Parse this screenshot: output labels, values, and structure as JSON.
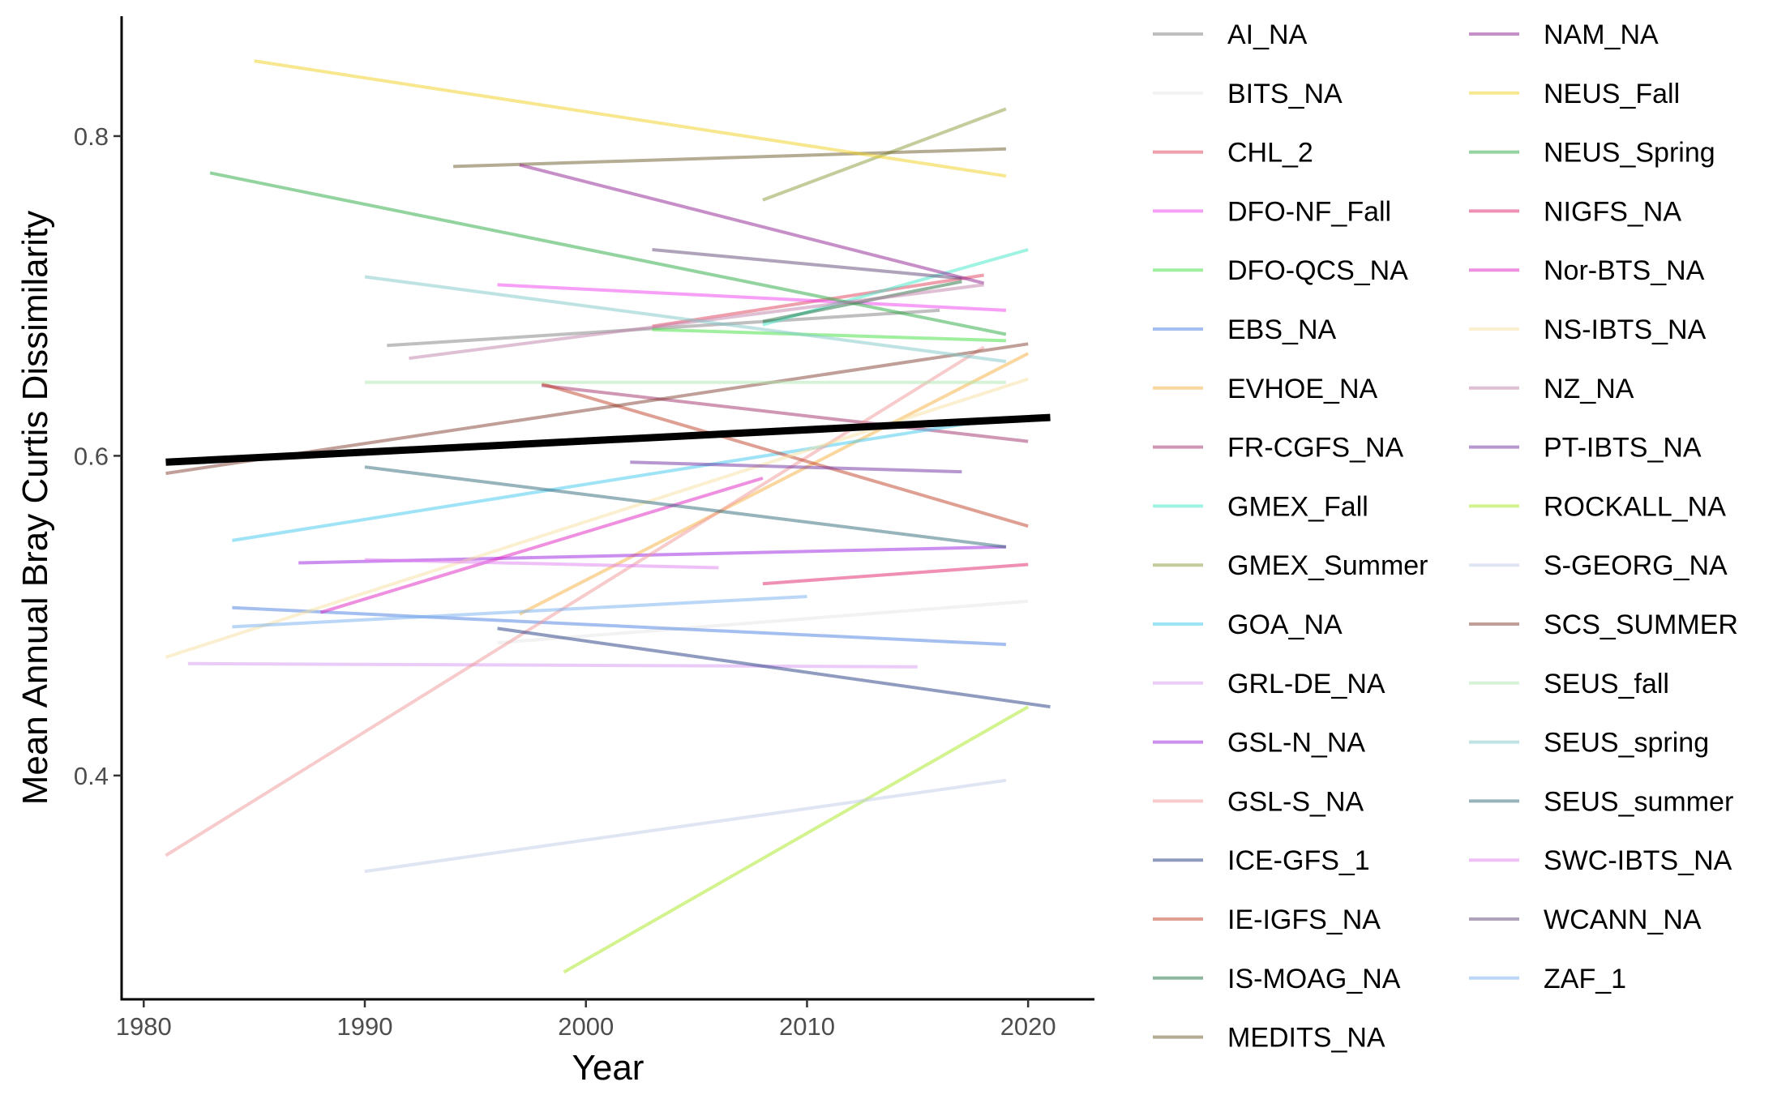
{
  "chart_data": {
    "type": "line",
    "title": "",
    "xlabel": "Year",
    "ylabel": "Mean Annual Bray Curtis Dissimilarity",
    "xlim": [
      1979,
      2023
    ],
    "ylim": [
      0.26,
      0.875
    ],
    "x_ticks": [
      1980,
      1990,
      2000,
      2010,
      2020
    ],
    "x_tick_labels": [
      "1980",
      "1990",
      "2000",
      "2010",
      "2020"
    ],
    "y_ticks": [
      0.4,
      0.6,
      0.8
    ],
    "y_tick_labels": [
      "0.4",
      "0.6",
      "0.8"
    ],
    "grid": false,
    "legend_position": "right",
    "series": [
      {
        "name": "AI_NA",
        "color": "#808080",
        "x": [
          1991,
          2016
        ],
        "y": [
          0.669,
          0.691
        ]
      },
      {
        "name": "BITS_NA",
        "color": "#e6e6e6",
        "x": [
          1996,
          2020
        ],
        "y": [
          0.483,
          0.509
        ]
      },
      {
        "name": "CHL_2",
        "color": "#e0405a",
        "x": [
          2003,
          2018
        ],
        "y": [
          0.681,
          0.713
        ]
      },
      {
        "name": "DFO-NF_Fall",
        "color": "#f040f0",
        "x": [
          1996,
          2019
        ],
        "y": [
          0.707,
          0.691
        ]
      },
      {
        "name": "DFO-QCS_NA",
        "color": "#40e040",
        "x": [
          2003,
          2019
        ],
        "y": [
          0.679,
          0.672
        ]
      },
      {
        "name": "EBS_NA",
        "color": "#4a7fe0",
        "x": [
          1984,
          2019
        ],
        "y": [
          0.505,
          0.482
        ]
      },
      {
        "name": "EVHOE_NA",
        "color": "#f5b040",
        "x": [
          1997,
          2020
        ],
        "y": [
          0.501,
          0.664
        ]
      },
      {
        "name": "FR-CGFS_NA",
        "color": "#a03068",
        "x": [
          1998,
          2020
        ],
        "y": [
          0.644,
          0.609
        ]
      },
      {
        "name": "GMEX_Fall",
        "color": "#40e8c8",
        "x": [
          2008,
          2020
        ],
        "y": [
          0.682,
          0.729
        ]
      },
      {
        "name": "GMEX_Summer",
        "color": "#889a38",
        "x": [
          2008,
          2019
        ],
        "y": [
          0.76,
          0.817
        ]
      },
      {
        "name": "GOA_NA",
        "color": "#40c8f0",
        "x": [
          1984,
          2019
        ],
        "y": [
          0.547,
          0.624
        ]
      },
      {
        "name": "GRL-DE_NA",
        "color": "#d898f0",
        "x": [
          1982,
          2015
        ],
        "y": [
          0.47,
          0.468
        ]
      },
      {
        "name": "GSL-N_NA",
        "color": "#9a20e0",
        "x": [
          1987,
          2019
        ],
        "y": [
          0.533,
          0.543
        ]
      },
      {
        "name": "GSL-S_NA",
        "color": "#f09898",
        "x": [
          1981,
          2018
        ],
        "y": [
          0.35,
          0.668
        ]
      },
      {
        "name": "ICE-GFS_1",
        "color": "#203a80",
        "x": [
          1996,
          2021
        ],
        "y": [
          0.492,
          0.443
        ]
      },
      {
        "name": "IE-IGFS_NA",
        "color": "#c04028",
        "x": [
          1998,
          2020
        ],
        "y": [
          0.645,
          0.556
        ]
      },
      {
        "name": "IS-MOAG_NA",
        "color": "#207040",
        "x": [
          2008,
          2017
        ],
        "y": [
          0.684,
          0.709
        ]
      },
      {
        "name": "MEDITS_NA",
        "color": "#6a5a28",
        "x": [
          1994,
          2019
        ],
        "y": [
          0.781,
          0.792
        ]
      },
      {
        "name": "NAM_NA",
        "color": "#902090",
        "x": [
          1997,
          2018
        ],
        "y": [
          0.782,
          0.708
        ]
      },
      {
        "name": "NEUS_Fall",
        "color": "#f0d020",
        "x": [
          1985,
          2019
        ],
        "y": [
          0.847,
          0.775
        ]
      },
      {
        "name": "NEUS_Spring",
        "color": "#28a840",
        "x": [
          1983,
          2019
        ],
        "y": [
          0.777,
          0.676
        ]
      },
      {
        "name": "NIGFS_NA",
        "color": "#e02068",
        "x": [
          2008,
          2020
        ],
        "y": [
          0.52,
          0.532
        ]
      },
      {
        "name": "Nor-BTS_NA",
        "color": "#e020c0",
        "x": [
          1988,
          2008
        ],
        "y": [
          0.502,
          0.586
        ]
      },
      {
        "name": "NS-IBTS_NA",
        "color": "#f5e0a0",
        "x": [
          1981,
          2020
        ],
        "y": [
          0.474,
          0.648
        ]
      },
      {
        "name": "NZ_NA",
        "color": "#c080a8",
        "x": [
          1992,
          2018
        ],
        "y": [
          0.661,
          0.707
        ]
      },
      {
        "name": "PT-IBTS_NA",
        "color": "#7030a0",
        "x": [
          2002,
          2017
        ],
        "y": [
          0.596,
          0.59
        ]
      },
      {
        "name": "ROCKALL_NA",
        "color": "#a8e820",
        "x": [
          1999,
          2020
        ],
        "y": [
          0.277,
          0.443
        ]
      },
      {
        "name": "S-GEORG_NA",
        "color": "#c0cce8",
        "x": [
          1990,
          2019
        ],
        "y": [
          0.34,
          0.397
        ]
      },
      {
        "name": "SCS_SUMMER",
        "color": "#804030",
        "x": [
          1981,
          2020
        ],
        "y": [
          0.589,
          0.67
        ]
      },
      {
        "name": "SEUS_fall",
        "color": "#b0e8b0",
        "x": [
          1990,
          2019
        ],
        "y": [
          0.646,
          0.646
        ]
      },
      {
        "name": "SEUS_spring",
        "color": "#80c8c8",
        "x": [
          1990,
          2019
        ],
        "y": [
          0.712,
          0.659
        ]
      },
      {
        "name": "SEUS_summer",
        "color": "#306878",
        "x": [
          1990,
          2019
        ],
        "y": [
          0.593,
          0.543
        ]
      },
      {
        "name": "SWC-IBTS_NA",
        "color": "#e080f0",
        "x": [
          1990,
          2006
        ],
        "y": [
          0.535,
          0.53
        ]
      },
      {
        "name": "WCANN_NA",
        "color": "#604878",
        "x": [
          2003,
          2017
        ],
        "y": [
          0.729,
          0.711
        ]
      },
      {
        "name": "ZAF_1",
        "color": "#78b0f0",
        "x": [
          1984,
          2010
        ],
        "y": [
          0.493,
          0.512
        ]
      }
    ],
    "overall_trend": {
      "color": "#000000",
      "x": [
        1981,
        2021
      ],
      "y": [
        0.596,
        0.624
      ]
    }
  }
}
